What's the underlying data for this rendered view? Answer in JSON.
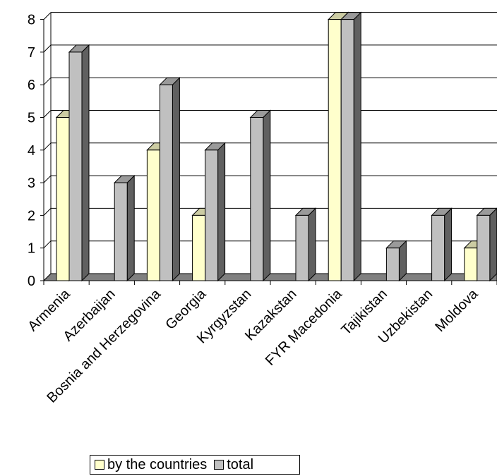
{
  "chart_data": {
    "type": "bar",
    "categories": [
      "Armenia",
      "Azerbaijan",
      "Bosnia and Herzegovina",
      "Georgia",
      "Kyrgyzstan",
      "Kazakstan",
      "FYR Macedonia",
      "Tajikistan",
      "Uzbekistan",
      "Moldova"
    ],
    "series": [
      {
        "name": "by the countries",
        "color": "#ffffcc",
        "values": [
          5,
          0,
          4,
          2,
          0,
          0,
          8,
          0,
          0,
          1
        ]
      },
      {
        "name": "total",
        "color": "#c0c0c0",
        "values": [
          7,
          3,
          6,
          4,
          5,
          2,
          8,
          1,
          2,
          2
        ]
      }
    ],
    "title": "",
    "xlabel": "",
    "ylabel": "",
    "ylim": [
      0,
      8
    ],
    "yticks": [
      0,
      1,
      2,
      3,
      4,
      5,
      6,
      7,
      8
    ],
    "grid": true,
    "legend_position": "bottom",
    "floor_color": "#808080",
    "bar_style": "3d"
  }
}
